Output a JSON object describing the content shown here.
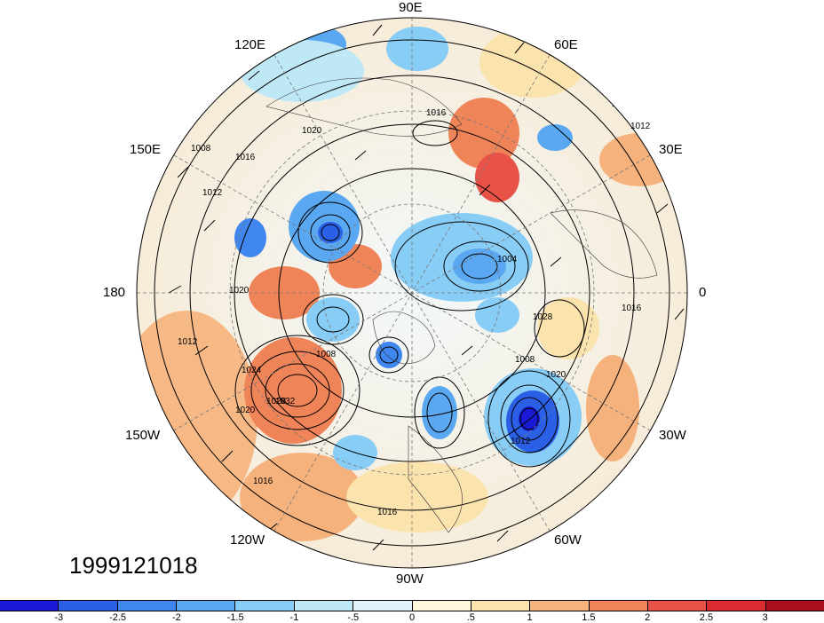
{
  "timestamp": "1999121018",
  "longitude_labels": {
    "lon_90e": "90E",
    "lon_120e": "120E",
    "lon_60e": "60E",
    "lon_150e": "150E",
    "lon_30e": "30E",
    "lon_180": "180",
    "lon_0": "0",
    "lon_150w": "150W",
    "lon_30w": "30W",
    "lon_120w": "120W",
    "lon_60w": "60W",
    "lon_90w": "90W"
  },
  "contour_labels": [
    "1016",
    "1020",
    "1008",
    "1012",
    "1016",
    "1020",
    "1024",
    "1028",
    "1032",
    "1008",
    "1012",
    "1016",
    "1020",
    "1004",
    "1028",
    "1008",
    "1012",
    "1020",
    "1016",
    "1012",
    "1016"
  ],
  "colorbar": {
    "colors": [
      "#1a1ad6",
      "#2a5fe6",
      "#3f86ef",
      "#5aa8f2",
      "#88cdf5",
      "#bfe8f7",
      "#e2f4f9",
      "#fff8dc",
      "#fbe3ae",
      "#f6b27c",
      "#ef8459",
      "#e95347",
      "#d92b30",
      "#a8101c"
    ],
    "tick_labels": [
      "-3",
      "-2.5",
      "-2",
      "-1.5",
      "-1",
      "-.5",
      "0",
      ".5",
      "1",
      "1.5",
      "2",
      "2.5",
      "3"
    ]
  }
}
